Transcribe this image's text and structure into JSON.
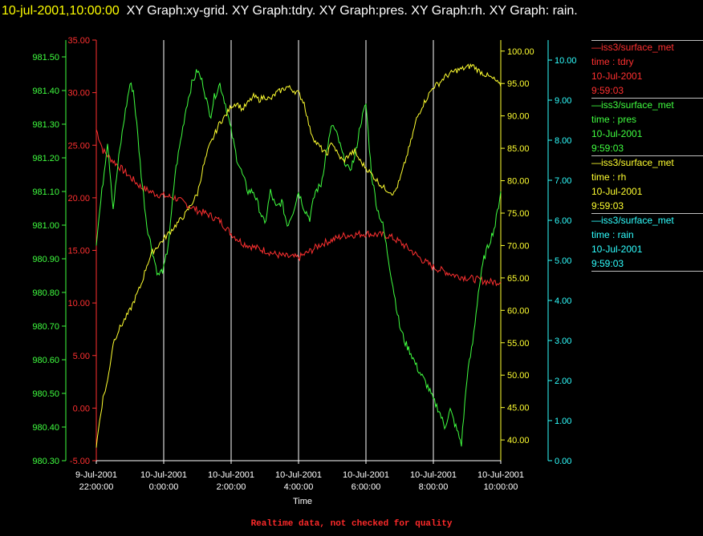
{
  "header": {
    "timestamp": "10-jul-2001,10:00:00",
    "graphs": "XY Graph:xy-grid.  XY Graph:tdry.  XY Graph:pres.  XY Graph:rh.  XY Graph: rain."
  },
  "footer": {
    "text": "Realtime data, not checked for quality"
  },
  "colors": {
    "tdry": "#ff3030",
    "pres": "#40ff40",
    "rh": "#ffff30",
    "rain": "#30ffff",
    "grid": "#ffffff"
  },
  "chart_data": {
    "type": "line",
    "xlabel": "Time",
    "x_ticks": [
      {
        "t": 0,
        "line1": "9-Jul-2001",
        "line2": "22:00:00"
      },
      {
        "t": 60,
        "line1": "10-Jul-2001",
        "line2": "0:00:00"
      },
      {
        "t": 120,
        "line1": "10-Jul-2001",
        "line2": "2:00:00"
      },
      {
        "t": 180,
        "line1": "10-Jul-2001",
        "line2": "4:00:00"
      },
      {
        "t": 240,
        "line1": "10-Jul-2001",
        "line2": "6:00:00"
      },
      {
        "t": 300,
        "line1": "10-Jul-2001",
        "line2": "8:00:00"
      },
      {
        "t": 360,
        "line1": "10-Jul-2001",
        "line2": "10:00:00"
      }
    ],
    "x_unit_note": "t in minutes from 9-Jul-2001 22:00:00",
    "axes": {
      "pres": {
        "min": 980.3,
        "max": 981.55,
        "ticks": [
          "980.30",
          "980.40",
          "980.50",
          "980.60",
          "980.70",
          "980.80",
          "980.90",
          "981.00",
          "981.10",
          "981.20",
          "981.30",
          "981.40",
          "981.50"
        ]
      },
      "tdry": {
        "min": -5,
        "max": 35,
        "ticks": [
          "-5.00",
          "0.00",
          "5.00",
          "10.00",
          "15.00",
          "20.00",
          "25.00",
          "30.00",
          "35.00"
        ]
      },
      "rh": {
        "min": 36.8,
        "max": 101.7,
        "ticks": [
          "40.00",
          "45.00",
          "50.00",
          "55.00",
          "60.00",
          "65.00",
          "70.00",
          "75.00",
          "80.00",
          "85.00",
          "90.00",
          "95.00",
          "100.00"
        ]
      },
      "rain": {
        "min": 0,
        "max": 10.5,
        "ticks": [
          "0.00",
          "1.00",
          "2.00",
          "3.00",
          "4.00",
          "5.00",
          "6.00",
          "7.00",
          "8.00",
          "9.00",
          "10.00"
        ]
      }
    },
    "series": [
      {
        "key": "tdry",
        "legend": [
          "—iss3/surface_met",
          "time : tdry",
          "10-Jul-2001",
          "9:59:03"
        ],
        "t": [
          0,
          6,
          12,
          20,
          28,
          40,
          52,
          60,
          70,
          80,
          90,
          100,
          110,
          120,
          130,
          140,
          150,
          160,
          170,
          180,
          190,
          200,
          210,
          220,
          230,
          240,
          250,
          260,
          270,
          280,
          290,
          300,
          310,
          320,
          330,
          340,
          350,
          360
        ],
        "values": [
          26.5,
          24.5,
          23.8,
          23.0,
          22.2,
          21.0,
          20.4,
          20.2,
          20.0,
          19.4,
          18.8,
          18.4,
          17.8,
          16.6,
          15.7,
          15.3,
          15.0,
          14.6,
          14.4,
          14.3,
          14.9,
          15.6,
          16.0,
          16.4,
          16.5,
          16.6,
          16.5,
          16.4,
          15.8,
          15.0,
          14.1,
          13.4,
          13.0,
          12.6,
          12.4,
          12.2,
          12.0,
          12.0
        ]
      },
      {
        "key": "pres",
        "legend": [
          "—iss3/surface_met",
          "time : pres",
          "10-Jul-2001",
          "9:59:03"
        ],
        "t": [
          0,
          5,
          10,
          15,
          20,
          25,
          30,
          33,
          36,
          40,
          45,
          50,
          55,
          60,
          63,
          66,
          70,
          75,
          80,
          85,
          90,
          95,
          100,
          102,
          105,
          110,
          115,
          120,
          125,
          130,
          135,
          140,
          145,
          150,
          155,
          160,
          165,
          170,
          175,
          180,
          185,
          190,
          195,
          200,
          205,
          210,
          215,
          220,
          225,
          230,
          235,
          240,
          245,
          250,
          255,
          260,
          265,
          270,
          275,
          280,
          285,
          290,
          295,
          300,
          305,
          310,
          315,
          320,
          325,
          330,
          335,
          340,
          345,
          350,
          355,
          360
        ],
        "values": [
          980.95,
          981.1,
          981.25,
          981.05,
          981.2,
          981.32,
          981.42,
          981.4,
          981.3,
          981.15,
          981.0,
          980.92,
          980.85,
          980.87,
          980.92,
          981.0,
          981.15,
          981.25,
          981.35,
          981.42,
          981.46,
          981.42,
          981.34,
          981.33,
          981.38,
          981.42,
          981.36,
          981.28,
          981.2,
          981.15,
          981.1,
          981.1,
          981.05,
          981.0,
          981.1,
          981.05,
          981.07,
          981.0,
          981.04,
          981.1,
          981.05,
          981.02,
          981.1,
          981.12,
          981.22,
          981.3,
          981.26,
          981.2,
          981.16,
          981.2,
          981.3,
          981.36,
          981.15,
          981.05,
          981.0,
          980.9,
          980.8,
          980.7,
          980.65,
          980.62,
          980.58,
          980.55,
          980.52,
          980.48,
          980.45,
          980.4,
          980.45,
          980.4,
          980.35,
          980.55,
          980.65,
          980.8,
          980.9,
          980.95,
          981.0,
          981.1
        ]
      },
      {
        "key": "rh",
        "legend": [
          "—iss3/surface_met",
          "time : rh",
          "10-Jul-2001",
          "9:59:03"
        ],
        "t": [
          0,
          3,
          6,
          10,
          15,
          20,
          25,
          30,
          35,
          40,
          45,
          50,
          55,
          60,
          65,
          70,
          75,
          80,
          85,
          90,
          95,
          100,
          105,
          110,
          115,
          120,
          125,
          130,
          135,
          140,
          145,
          150,
          155,
          160,
          165,
          170,
          175,
          180,
          185,
          190,
          195,
          200,
          205,
          210,
          215,
          220,
          225,
          230,
          235,
          240,
          245,
          250,
          255,
          260,
          265,
          270,
          275,
          280,
          285,
          290,
          295,
          300,
          305,
          310,
          315,
          320,
          325,
          330,
          335,
          340,
          345,
          350,
          355,
          360
        ],
        "values": [
          39.0,
          43.0,
          46.5,
          49.0,
          55.0,
          57.0,
          58.5,
          60.0,
          62.0,
          64.0,
          67.0,
          69.0,
          70.0,
          71.0,
          72.0,
          73.0,
          74.0,
          75.0,
          76.5,
          78.0,
          82.0,
          85.0,
          87.0,
          89.0,
          90.0,
          91.5,
          92.0,
          91.0,
          92.0,
          93.0,
          92.5,
          93.0,
          92.5,
          93.5,
          94.0,
          94.5,
          94.0,
          93.5,
          92.0,
          88.0,
          86.0,
          85.0,
          84.0,
          86.0,
          84.0,
          83.0,
          84.0,
          84.5,
          83.0,
          82.0,
          81.0,
          80.0,
          79.0,
          78.5,
          78.0,
          80.0,
          83.0,
          86.0,
          89.5,
          91.5,
          93.0,
          94.5,
          95.0,
          96.0,
          96.5,
          97.0,
          97.2,
          97.5,
          97.8,
          97.0,
          96.5,
          96.0,
          95.5,
          94.5
        ]
      },
      {
        "key": "rain",
        "legend": [
          "—iss3/surface_met",
          "time : rain",
          "10-Jul-2001",
          "9:59:03"
        ],
        "t": [
          0,
          360
        ],
        "values": [
          0.0,
          0.0
        ]
      }
    ]
  }
}
